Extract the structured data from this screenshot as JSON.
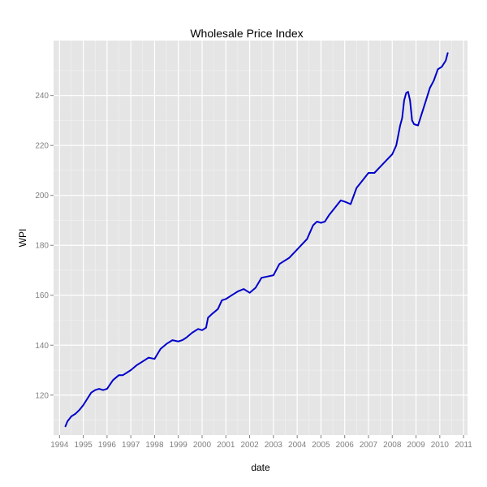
{
  "chart_data": {
    "type": "line",
    "title": "Wholesale Price Index",
    "xlabel": "date",
    "ylabel": "WPI",
    "xlim": [
      "1993-10-01",
      "2011-03-01"
    ],
    "ylim": [
      104,
      262
    ],
    "x_ticks": [
      "1994",
      "1995",
      "1996",
      "1997",
      "1998",
      "1999",
      "2000",
      "2001",
      "2002",
      "2003",
      "2004",
      "2005",
      "2006",
      "2007",
      "2008",
      "2009",
      "2010",
      "2011"
    ],
    "y_ticks": [
      120,
      140,
      160,
      180,
      200,
      220,
      240
    ],
    "grid": true,
    "legend": "none",
    "colors": {
      "panel": "#e5e5e5",
      "grid_major": "#ffffff",
      "grid_minor": "#f2f2f2",
      "line": "#0000cc",
      "tick": "#7f7f7f"
    },
    "series": [
      {
        "x": [
          "1994-04",
          "1994-05",
          "1994-07",
          "1994-09",
          "1994-11",
          "1995-01",
          "1995-03",
          "1995-05",
          "1995-07",
          "1995-09",
          "1995-11",
          "1996-01",
          "1996-04",
          "1996-07",
          "1996-09",
          "1996-11",
          "1997-01",
          "1997-04",
          "1997-07",
          "1997-10",
          "1998-01",
          "1998-04",
          "1998-07",
          "1998-10",
          "1999-01",
          "1999-03",
          "1999-05",
          "1999-08",
          "1999-11",
          "2000-01",
          "2000-03",
          "2000-04",
          "2000-06",
          "2000-09",
          "2000-11",
          "2001-01",
          "2001-04",
          "2001-07",
          "2001-10",
          "2002-01",
          "2002-04",
          "2002-07",
          "2002-10",
          "2003-01",
          "2003-04",
          "2003-06",
          "2003-09",
          "2003-12",
          "2004-03",
          "2004-06",
          "2004-09",
          "2004-11",
          "2005-01",
          "2005-03",
          "2005-05",
          "2005-08",
          "2005-11",
          "2006-01",
          "2006-04",
          "2006-07",
          "2006-10",
          "2007-01",
          "2007-04",
          "2007-07",
          "2007-10",
          "2008-01",
          "2008-03",
          "2008-05",
          "2008-06",
          "2008-07",
          "2008-08",
          "2008-09",
          "2008-10",
          "2008-11",
          "2008-12",
          "2009-02",
          "2009-04",
          "2009-06",
          "2009-08",
          "2009-10",
          "2009-12",
          "2010-02",
          "2010-04",
          "2010-05"
        ],
        "y": [
          107.5,
          109.5,
          111.5,
          112.5,
          114,
          116,
          118.5,
          121,
          122,
          122.5,
          122,
          122.5,
          126,
          128,
          128,
          129,
          130,
          132,
          133.5,
          135,
          134.5,
          138.5,
          140.5,
          142,
          141.5,
          142,
          143,
          145,
          146.5,
          146,
          147,
          151,
          152.5,
          154.5,
          158,
          158.5,
          160,
          161.5,
          162.5,
          161,
          163,
          167,
          167.5,
          168,
          172.5,
          173.5,
          175,
          177.5,
          180,
          182.5,
          188,
          189.5,
          189,
          189.5,
          192,
          195,
          198,
          197.5,
          196.5,
          203,
          206,
          209,
          209,
          211.5,
          214,
          216.5,
          220,
          228,
          231,
          238,
          241,
          241.5,
          238,
          230,
          228.5,
          228,
          233,
          238,
          243,
          246,
          250.5,
          251.5,
          254,
          257
        ]
      }
    ]
  }
}
